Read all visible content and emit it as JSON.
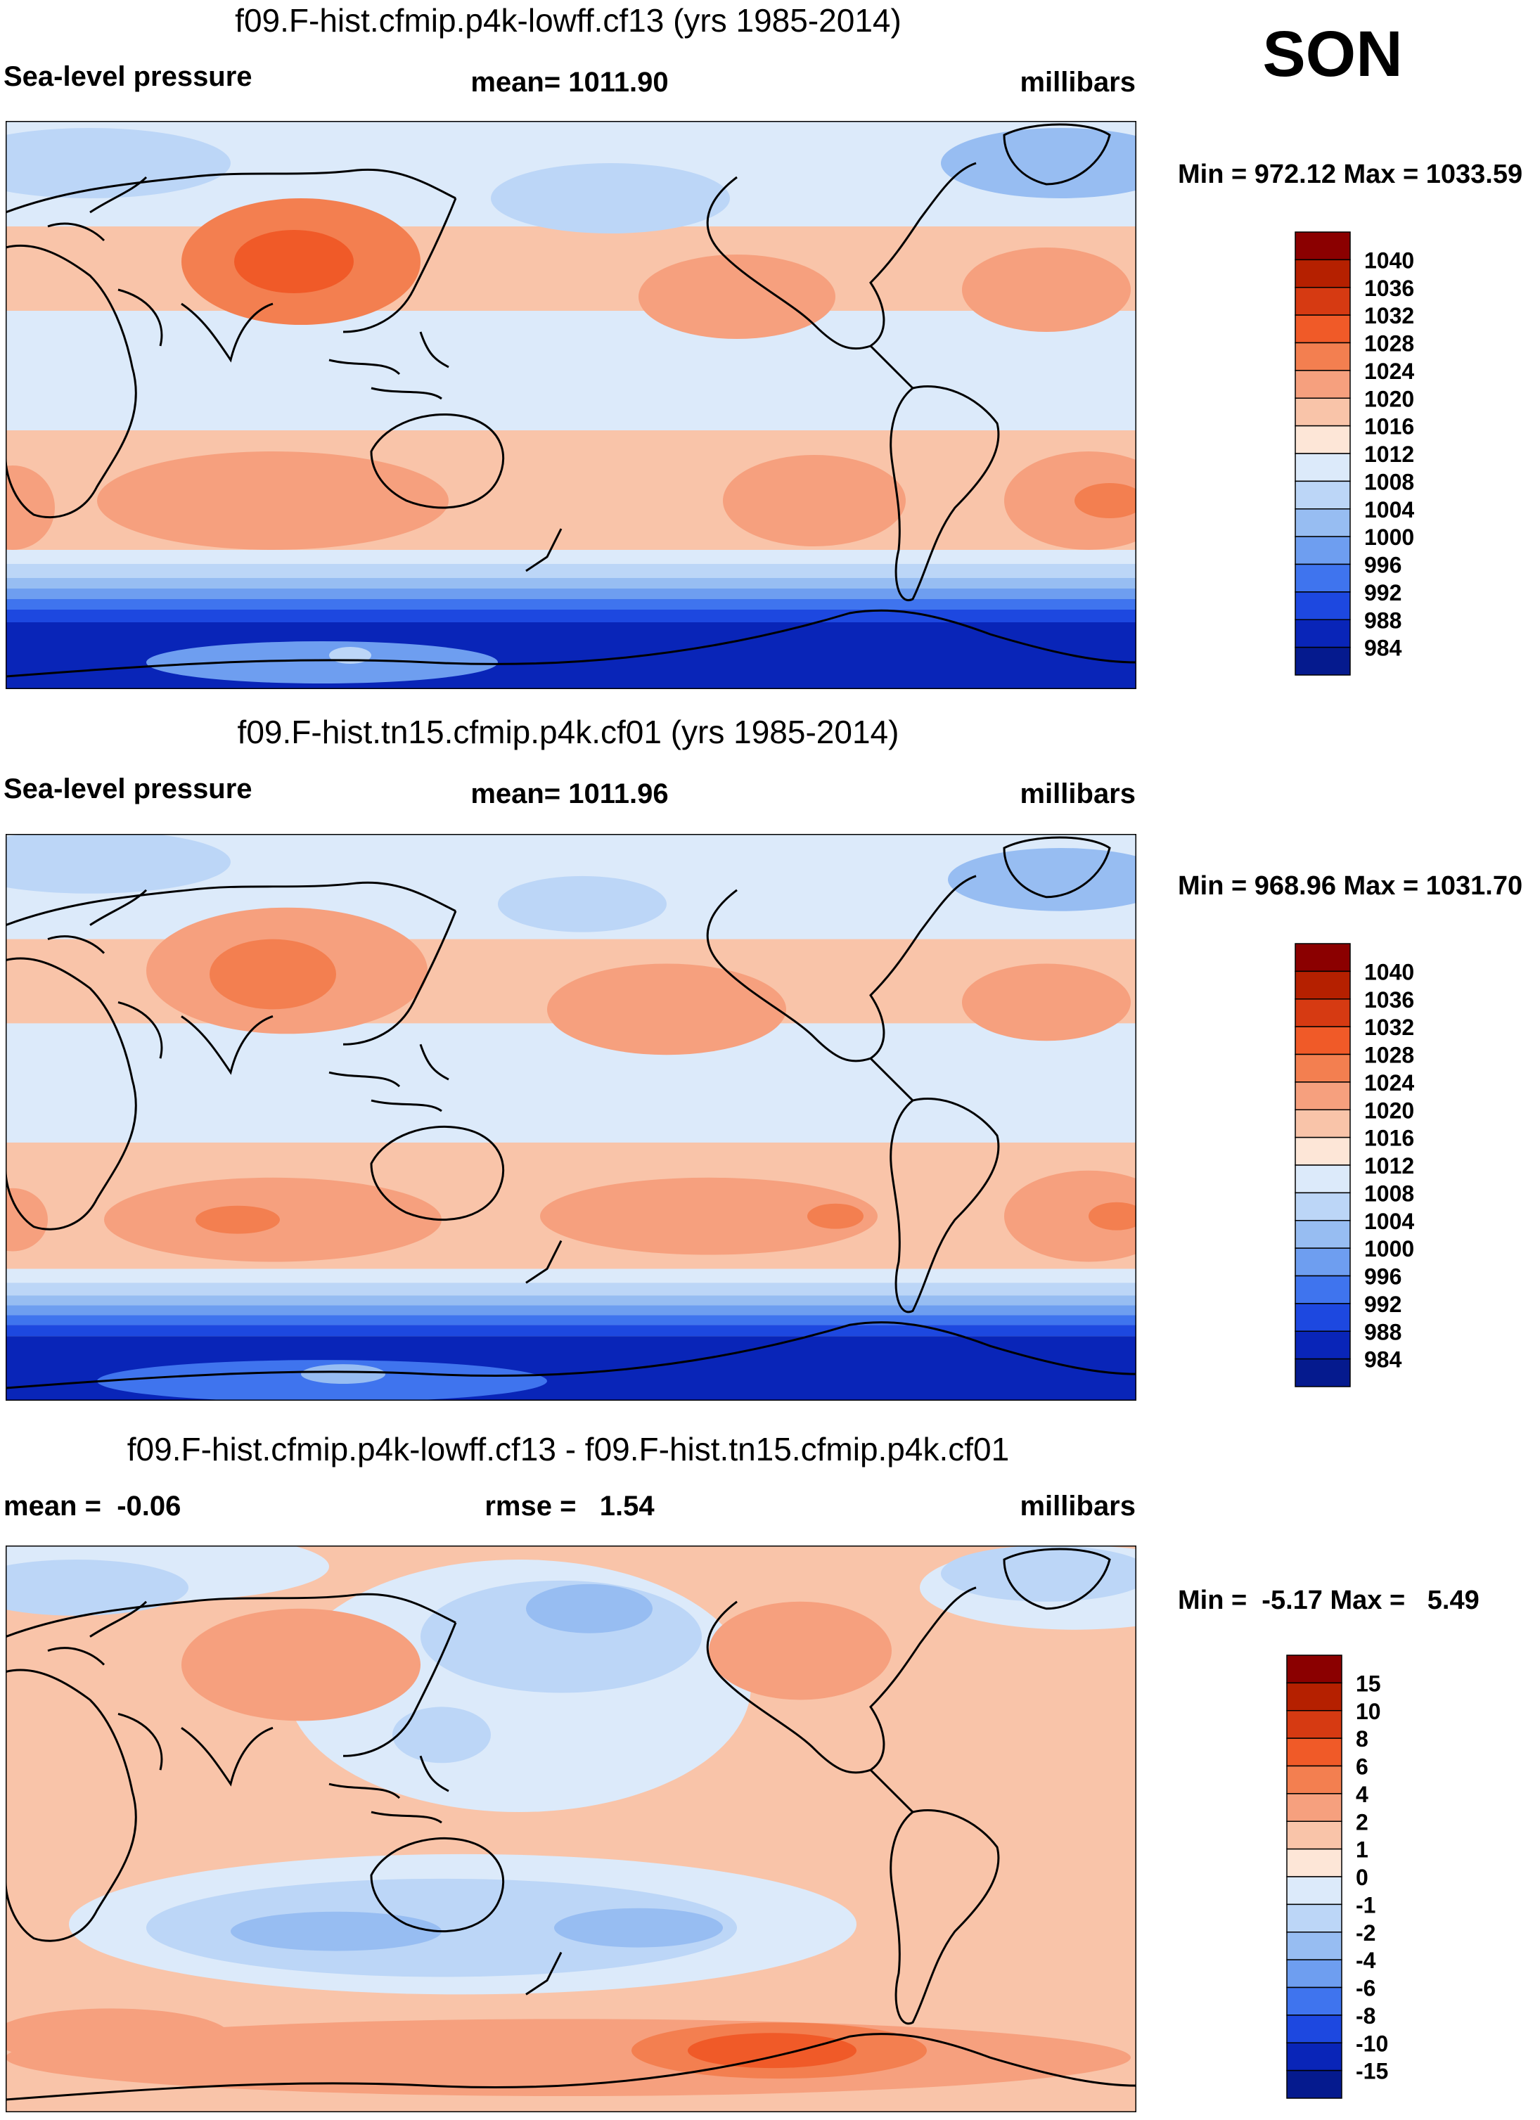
{
  "season": "SON",
  "chart_data": [
    {
      "type": "heatmap",
      "panel": "model-1",
      "title": "f09.F-hist.cfmip.p4k-lowff.cf13 (yrs 1985-2014)",
      "left_label": "Sea-level pressure",
      "center_label": "mean= 1011.90",
      "units": "millibars",
      "minmax": "Min = 972.12 Max = 1033.59",
      "mean": 1011.9,
      "min": 972.12,
      "max": 1033.59,
      "colorbar": {
        "levels": [
          "1040",
          "1036",
          "1032",
          "1028",
          "1024",
          "1020",
          "1016",
          "1012",
          "1008",
          "1004",
          "1000",
          "996",
          "992",
          "988",
          "984"
        ],
        "colors": [
          "#8b0000",
          "#b52000",
          "#d63a12",
          "#f05a28",
          "#f37f50",
          "#f6a07e",
          "#f9c4a9",
          "#fde6d7",
          "#dceafa",
          "#bcd6f7",
          "#97bdf2",
          "#6e9ef0",
          "#3f74ee",
          "#1d48e0",
          "#0925b8",
          "#051a8e"
        ]
      },
      "regions": {
        "south_low": 984,
        "subtropical_high": 1020,
        "tropics": 1008,
        "asia_high": 1028
      }
    },
    {
      "type": "heatmap",
      "panel": "model-2",
      "title": "f09.F-hist.tn15.cfmip.p4k.cf01 (yrs 1985-2014)",
      "left_label": "Sea-level pressure",
      "center_label": "mean= 1011.96",
      "units": "millibars",
      "minmax": "Min = 968.96 Max = 1031.70",
      "mean": 1011.96,
      "min": 968.96,
      "max": 1031.7,
      "colorbar": {
        "levels": [
          "1040",
          "1036",
          "1032",
          "1028",
          "1024",
          "1020",
          "1016",
          "1012",
          "1008",
          "1004",
          "1000",
          "996",
          "992",
          "988",
          "984"
        ],
        "colors": [
          "#8b0000",
          "#b52000",
          "#d63a12",
          "#f05a28",
          "#f37f50",
          "#f6a07e",
          "#f9c4a9",
          "#fde6d7",
          "#dceafa",
          "#bcd6f7",
          "#97bdf2",
          "#6e9ef0",
          "#3f74ee",
          "#1d48e0",
          "#0925b8",
          "#051a8e"
        ]
      },
      "regions": {
        "south_low": 984,
        "subtropical_high": 1020,
        "tropics": 1008,
        "asia_high": 1024
      }
    },
    {
      "type": "heatmap",
      "panel": "difference",
      "title": "f09.F-hist.cfmip.p4k-lowff.cf13 - f09.F-hist.tn15.cfmip.p4k.cf01",
      "left_label": "mean =  -0.06",
      "center_label": "rmse =   1.54",
      "units": "millibars",
      "minmax": "Min =  -5.17 Max =   5.49",
      "mean": -0.06,
      "rmse": 1.54,
      "min": -5.17,
      "max": 5.49,
      "colorbar": {
        "levels": [
          "15",
          "10",
          "8",
          "6",
          "4",
          "2",
          "1",
          "0",
          "-1",
          "-2",
          "-4",
          "-6",
          "-8",
          "-10",
          "-15"
        ],
        "colors": [
          "#8b0000",
          "#b52000",
          "#d63a12",
          "#f05a28",
          "#f37f50",
          "#f6a07e",
          "#f9c4a9",
          "#fde6d7",
          "#dceafa",
          "#bcd6f7",
          "#97bdf2",
          "#6e9ef0",
          "#3f74ee",
          "#1d48e0",
          "#0925b8",
          "#051a8e"
        ]
      },
      "regions": {
        "north_pacific_low": -4,
        "south_pacific_low": -4,
        "southern_ocean_high": 4,
        "land": 1
      }
    }
  ]
}
